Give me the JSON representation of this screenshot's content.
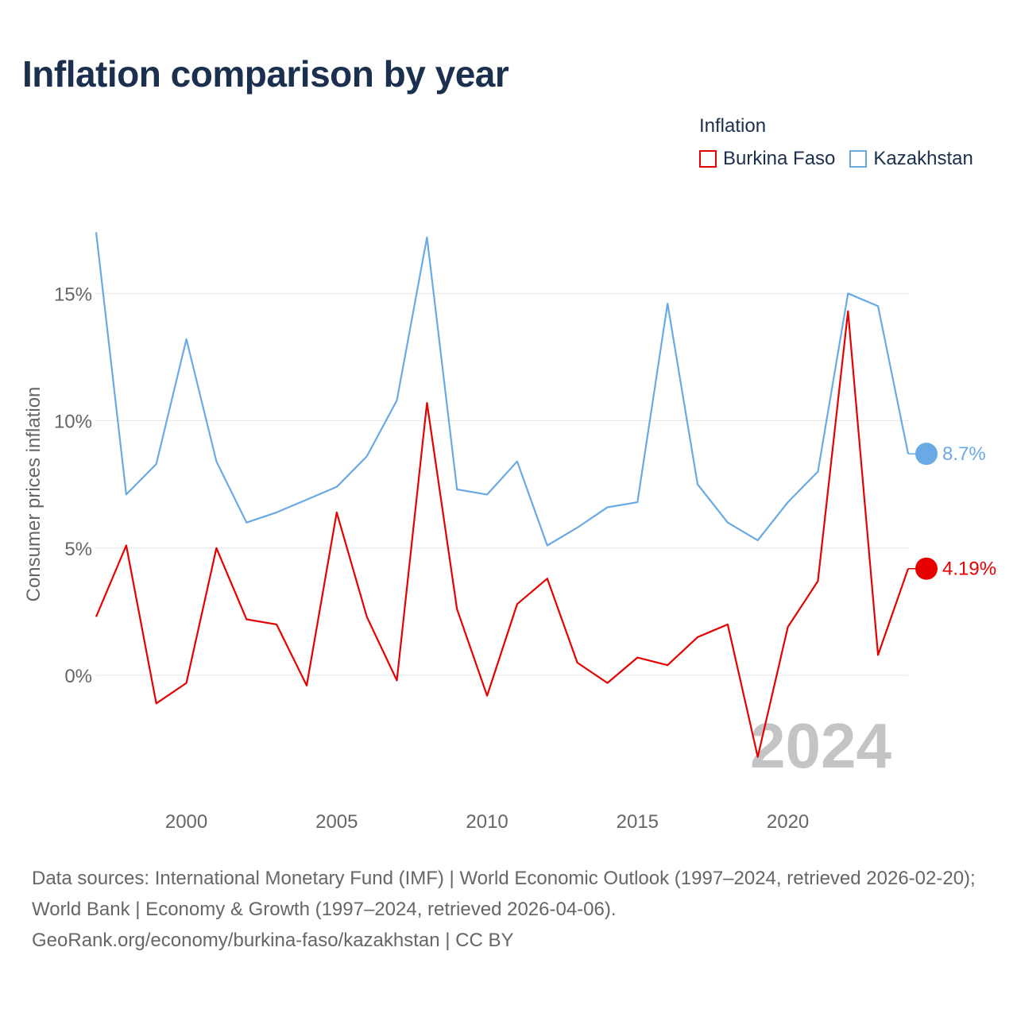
{
  "title": "Inflation comparison by year",
  "legend": {
    "title": "Inflation",
    "items": [
      {
        "label": "Burkina Faso",
        "color": "#e60000"
      },
      {
        "label": "Kazakhstan",
        "color": "#6aaae4"
      }
    ]
  },
  "watermark_year": "2024",
  "footer": {
    "sources": "Data sources: International Monetary Fund (IMF) | World Economic Outlook (1997–2024, retrieved 2026-02-20); World Bank | Economy & Growth (1997–2024, retrieved 2026-04-06).",
    "link": "GeoRank.org/economy/burkina-faso/kazakhstan | CC BY"
  },
  "chart_data": {
    "type": "line",
    "title": "Inflation comparison by year",
    "xlabel": "",
    "ylabel": "Consumer prices inflation",
    "xlim": [
      1997,
      2024
    ],
    "ylim": [
      -4.5,
      17.5
    ],
    "x_ticks": [
      2000,
      2005,
      2010,
      2015,
      2020
    ],
    "y_ticks": [
      {
        "value": 0,
        "label": "0%"
      },
      {
        "value": 5,
        "label": "5%"
      },
      {
        "value": 10,
        "label": "10%"
      },
      {
        "value": 15,
        "label": "15%"
      }
    ],
    "grid": true,
    "legend_position": "top-right",
    "x": [
      1997,
      1998,
      1999,
      2000,
      2001,
      2002,
      2003,
      2004,
      2005,
      2006,
      2007,
      2008,
      2009,
      2010,
      2011,
      2012,
      2013,
      2014,
      2015,
      2016,
      2017,
      2018,
      2019,
      2020,
      2021,
      2022,
      2023,
      2024
    ],
    "series": [
      {
        "name": "Kazakhstan",
        "color": "#6aaae4",
        "values": [
          17.4,
          7.1,
          8.3,
          13.2,
          8.4,
          6.0,
          6.4,
          6.9,
          7.4,
          8.6,
          10.8,
          17.2,
          7.3,
          7.1,
          8.4,
          5.1,
          5.8,
          6.6,
          6.8,
          14.6,
          7.5,
          6.0,
          5.3,
          6.8,
          8.0,
          15.0,
          14.5,
          8.7
        ],
        "end_label": "8.7%"
      },
      {
        "name": "Burkina Faso",
        "color": "#e60000",
        "values": [
          2.3,
          5.1,
          -1.1,
          -0.3,
          5.0,
          2.2,
          2.0,
          -0.4,
          6.4,
          2.3,
          -0.2,
          10.7,
          2.6,
          -0.8,
          2.8,
          3.8,
          0.5,
          -0.3,
          0.7,
          0.4,
          1.5,
          2.0,
          -3.2,
          1.9,
          3.7,
          14.3,
          0.8,
          4.19
        ],
        "end_label": "4.19%"
      }
    ]
  }
}
